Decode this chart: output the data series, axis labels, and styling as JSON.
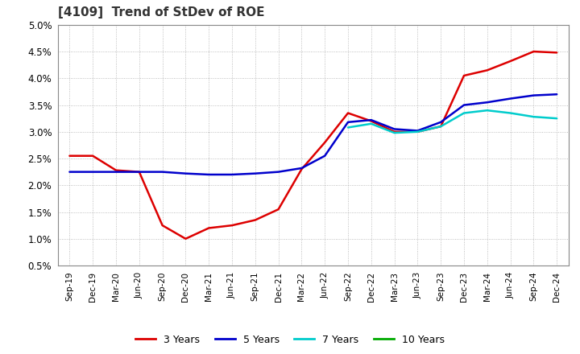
{
  "title": "[4109]  Trend of StDev of ROE",
  "title_fontsize": 11,
  "title_color": "#333333",
  "background_color": "#ffffff",
  "plot_bg_color": "#ffffff",
  "grid_color": "#999999",
  "ylim": [
    0.005,
    0.05
  ],
  "yticks": [
    0.005,
    0.01,
    0.015,
    0.02,
    0.025,
    0.03,
    0.035,
    0.04,
    0.045,
    0.05
  ],
  "ytick_labels": [
    "0.5%",
    "1.0%",
    "1.5%",
    "2.0%",
    "2.5%",
    "3.0%",
    "3.5%",
    "4.0%",
    "4.5%",
    "5.0%"
  ],
  "x_labels": [
    "Sep-19",
    "Dec-19",
    "Mar-20",
    "Jun-20",
    "Sep-20",
    "Dec-20",
    "Mar-21",
    "Jun-21",
    "Sep-21",
    "Dec-21",
    "Mar-22",
    "Jun-22",
    "Sep-22",
    "Dec-22",
    "Mar-23",
    "Jun-23",
    "Sep-23",
    "Dec-23",
    "Mar-24",
    "Jun-24",
    "Sep-24",
    "Dec-24"
  ],
  "series": {
    "3 Years": {
      "color": "#dd0000",
      "linewidth": 1.8,
      "values": [
        0.0255,
        0.0255,
        0.0228,
        0.0225,
        0.0125,
        0.01,
        0.012,
        0.0125,
        0.0135,
        0.0155,
        0.023,
        0.028,
        0.0335,
        0.032,
        0.03,
        0.03,
        0.031,
        0.0405,
        0.0415,
        0.0432,
        0.045,
        0.0448
      ]
    },
    "5 Years": {
      "color": "#0000cc",
      "linewidth": 1.8,
      "values": [
        0.0225,
        0.0225,
        0.0225,
        0.0225,
        0.0225,
        0.0222,
        0.022,
        0.022,
        0.0222,
        0.0225,
        0.0232,
        0.0255,
        0.0318,
        0.0322,
        0.0305,
        0.0302,
        0.0318,
        0.035,
        0.0355,
        0.0362,
        0.0368,
        0.037
      ]
    },
    "7 Years": {
      "color": "#00cccc",
      "linewidth": 1.8,
      "values": [
        null,
        null,
        null,
        null,
        null,
        null,
        null,
        null,
        null,
        null,
        null,
        null,
        0.0308,
        0.0315,
        0.0298,
        0.03,
        0.031,
        0.0335,
        0.034,
        0.0335,
        0.0328,
        0.0325
      ]
    },
    "10 Years": {
      "color": "#00aa00",
      "linewidth": 1.8,
      "values": [
        null,
        null,
        null,
        null,
        null,
        null,
        null,
        null,
        null,
        null,
        null,
        null,
        null,
        null,
        null,
        null,
        null,
        null,
        null,
        null,
        null,
        null
      ]
    }
  },
  "legend_labels": [
    "3 Years",
    "5 Years",
    "7 Years",
    "10 Years"
  ],
  "legend_colors": [
    "#dd0000",
    "#0000cc",
    "#00cccc",
    "#00aa00"
  ]
}
